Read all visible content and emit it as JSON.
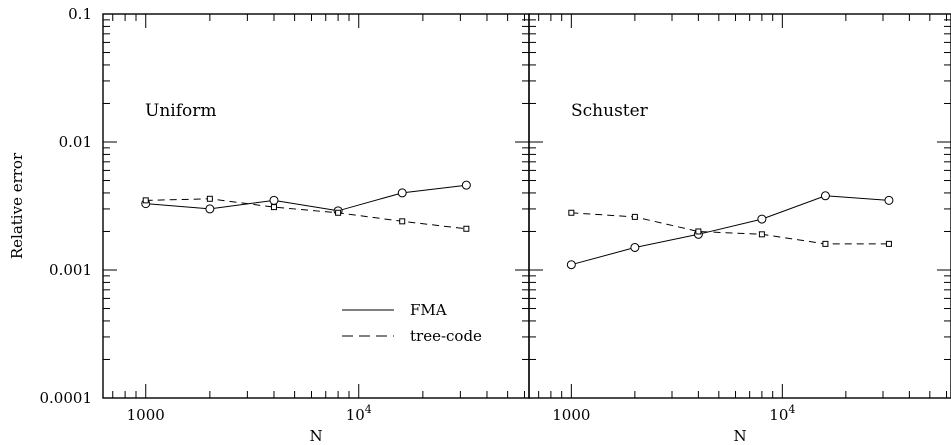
{
  "chart_data": {
    "type": "line",
    "ylabel": "Relative error",
    "y_scale": "log",
    "x_scale": "log",
    "ylim": [
      0.0001,
      0.1
    ],
    "y_ticks": [
      {
        "value": 0.1,
        "label": "0.1"
      },
      {
        "value": 0.01,
        "label": "0.01"
      },
      {
        "value": 0.001,
        "label": "0.001"
      },
      {
        "value": 0.0001,
        "label": "0.0001"
      }
    ],
    "legend": {
      "placement": "lower-right of left panel",
      "entries": [
        {
          "name": "FMA",
          "style": "solid"
        },
        {
          "name": "tree-code",
          "style": "dashed"
        }
      ]
    },
    "panels": [
      {
        "title": "Uniform",
        "xlabel": "N",
        "xlim": [
          630,
          63000
        ],
        "x_ticks": [
          {
            "value": 1000,
            "base": "1000",
            "exp": ""
          },
          {
            "value": 10000,
            "base": "10",
            "exp": "4"
          }
        ],
        "series": [
          {
            "name": "FMA",
            "style": "solid",
            "marker": "circle",
            "x": [
              1000,
              2000,
              4000,
              8000,
              16000,
              32000
            ],
            "y": [
              0.0033,
              0.003,
              0.0035,
              0.0029,
              0.004,
              0.0046
            ]
          },
          {
            "name": "tree-code",
            "style": "dashed",
            "marker": "square",
            "x": [
              1000,
              2000,
              4000,
              8000,
              16000,
              32000
            ],
            "y": [
              0.0035,
              0.0036,
              0.0031,
              0.0028,
              0.0024,
              0.0021
            ]
          }
        ]
      },
      {
        "title": "Schuster",
        "xlabel": "N",
        "xlim": [
          630,
          63000
        ],
        "x_ticks": [
          {
            "value": 1000,
            "base": "1000",
            "exp": ""
          },
          {
            "value": 10000,
            "base": "10",
            "exp": "4"
          }
        ],
        "series": [
          {
            "name": "FMA",
            "style": "solid",
            "marker": "circle",
            "x": [
              1000,
              2000,
              4000,
              8000,
              16000,
              32000
            ],
            "y": [
              0.0011,
              0.0015,
              0.0019,
              0.0025,
              0.0038,
              0.0035
            ]
          },
          {
            "name": "tree-code",
            "style": "dashed",
            "marker": "square",
            "x": [
              1000,
              2000,
              4000,
              8000,
              16000,
              32000
            ],
            "y": [
              0.0028,
              0.0026,
              0.002,
              0.0019,
              0.0016,
              0.0016
            ]
          }
        ]
      }
    ]
  }
}
